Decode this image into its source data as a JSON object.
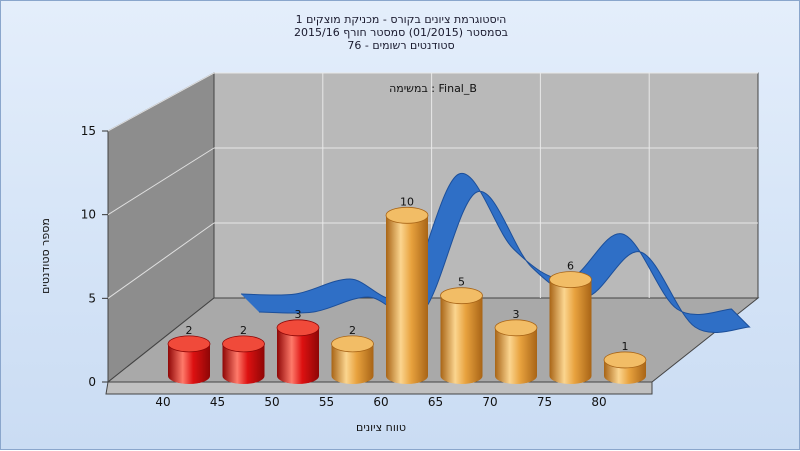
{
  "title_lines": [
    "היסטוגרמת ציונים בקורס - מכניקת מוצקים 1",
    "בסמסטר  (01/2015)  סמסטר חורף 2015/16",
    "סטודנטים רשומים - 76"
  ],
  "annotation": "במשימה : Final_B",
  "colors": {
    "low_bar": "#dd1111",
    "high_bar": "#e8a23e",
    "curve": "#2f6fc6",
    "back_wall": "#b9b9b9",
    "side_wall": "#8d8d8d",
    "floor": "#a9a9a9"
  },
  "chart_data": {
    "type": "bar",
    "categories": [
      "40",
      "45",
      "50",
      "55",
      "60",
      "65",
      "70",
      "75",
      "80"
    ],
    "values": [
      2,
      2,
      3,
      2,
      10,
      5,
      3,
      6,
      1
    ],
    "data_labels": [
      "2",
      "2",
      "3",
      "2",
      "10",
      "5",
      "3",
      "6",
      "1"
    ],
    "highlight_below_index": 3,
    "ylim": [
      0,
      15
    ],
    "y_ticks": [
      0,
      5,
      10,
      15
    ],
    "xlabel": "טווח ציונים",
    "ylabel": "מספר סטודנטים",
    "grid": true,
    "smooth_curve": {
      "x": [
        40,
        45,
        50,
        55,
        60,
        65,
        70,
        75,
        80,
        85
      ],
      "y": [
        2,
        2,
        3,
        2,
        10,
        5,
        3,
        6,
        1,
        1
      ]
    }
  }
}
